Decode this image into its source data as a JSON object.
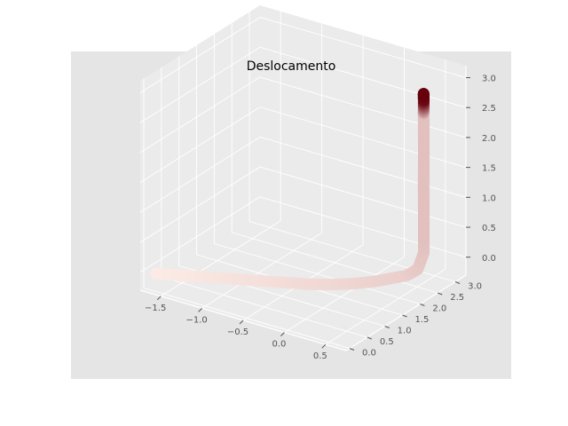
{
  "chart_data": {
    "type": "scatter",
    "projection": "3d",
    "title": "Deslocamento",
    "xlabel": "",
    "ylabel": "",
    "zlabel": "",
    "grid": true,
    "legend": "none",
    "style": "ggplot",
    "colors": {
      "figure_bg": "#ffffff",
      "axes_bg": "#e5e5e5",
      "pane": "#ebebeb",
      "grid": "#ffffff",
      "point_low": "#fff0ea",
      "point_high": "#67000d",
      "tick_text": "#555555"
    },
    "colormap": "Reds",
    "xlim": [
      -1.75,
      0.75
    ],
    "ylim": [
      -0.1,
      3.3
    ],
    "zlim": [
      -0.3,
      3.2
    ],
    "xticks": [
      "−1.5",
      "−1.0",
      "−0.5",
      "0.0",
      "0.5"
    ],
    "yticks": [
      "0.0",
      "0.5",
      "1.0",
      "1.5",
      "2.0",
      "2.5",
      "3.0"
    ],
    "zticks": [
      "0.0",
      "0.5",
      "1.0",
      "1.5",
      "2.0",
      "2.5",
      "3.0"
    ],
    "series": [
      {
        "x": [
          -1.6,
          -1.4,
          -1.2,
          -1.0,
          -0.8,
          -0.6,
          -0.4,
          -0.2,
          0.0,
          0.15,
          0.3,
          0.4,
          0.5,
          0.55,
          0.58,
          0.58,
          0.58,
          0.57,
          0.58,
          0.58,
          0.57,
          0.58,
          0.57
        ],
        "y": [
          0.0,
          0.15,
          0.3,
          0.45,
          0.6,
          0.75,
          0.9,
          1.05,
          1.25,
          1.45,
          1.7,
          1.95,
          2.2,
          2.4,
          2.5,
          2.5,
          2.5,
          2.52,
          2.5,
          2.5,
          2.52,
          2.5,
          2.52
        ],
        "z": [
          0.0,
          0.0,
          0.0,
          0.0,
          0.0,
          0.0,
          0.0,
          0.0,
          0.0,
          0.0,
          0.0,
          0.0,
          0.0,
          0.05,
          0.3,
          0.6,
          1.0,
          1.4,
          1.8,
          2.2,
          2.6,
          2.85,
          2.95
        ],
        "c": [
          0.02,
          0.03,
          0.04,
          0.05,
          0.06,
          0.07,
          0.08,
          0.09,
          0.1,
          0.11,
          0.12,
          0.13,
          0.14,
          0.16,
          0.18,
          0.2,
          0.2,
          0.2,
          0.2,
          0.2,
          0.2,
          0.95,
          1.0
        ]
      }
    ]
  }
}
